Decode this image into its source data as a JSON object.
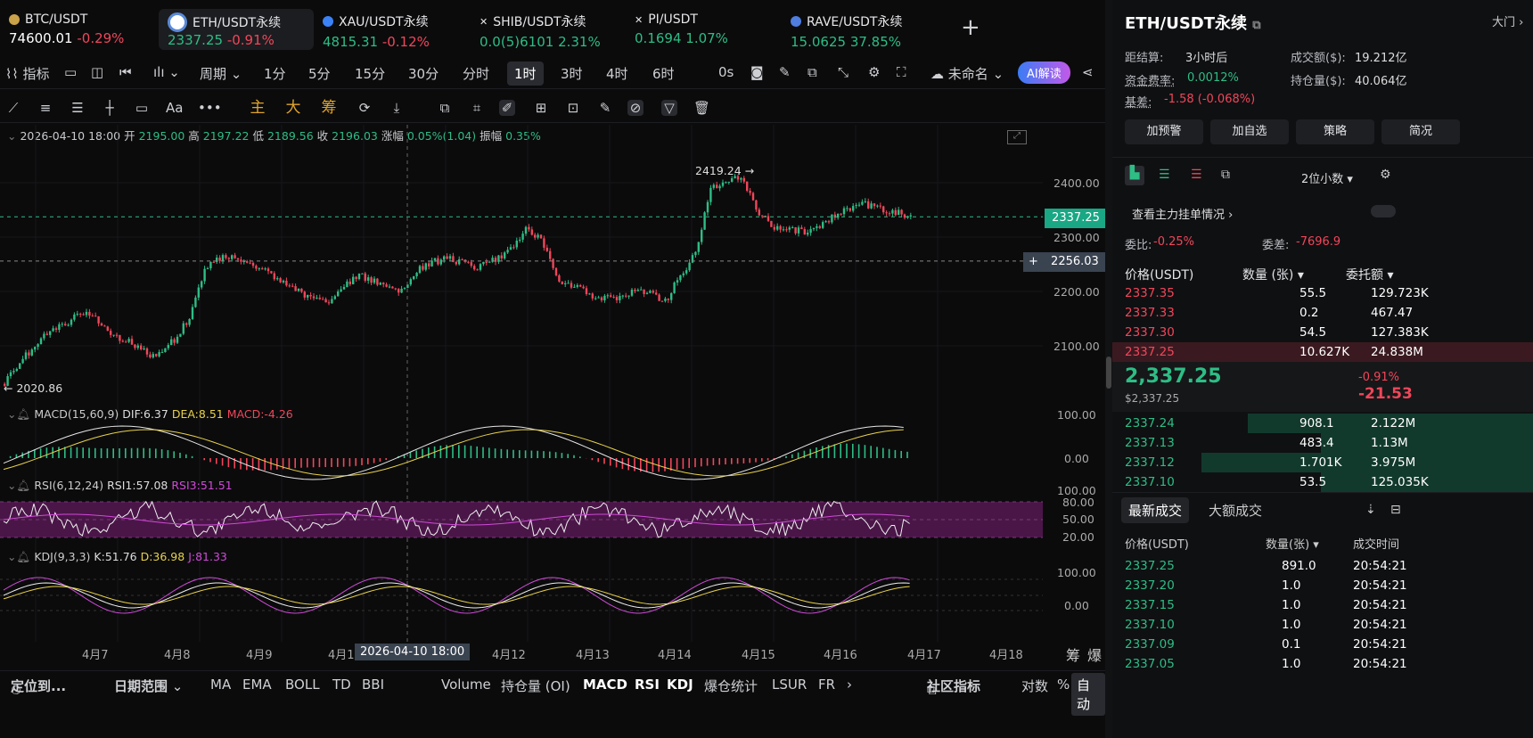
{
  "tabs": [
    {
      "name": "BTC/USDT",
      "price": "74600.01",
      "change": "-0.29%",
      "dir": "down",
      "dot": "#c9a24a"
    },
    {
      "name": "ETH/USDT永续",
      "price": "2337.25",
      "change": "-0.91%",
      "dir": "down",
      "dot": "#7fa3e8"
    },
    {
      "name": "XAU/USDT永续",
      "price": "4815.31",
      "change": "-0.12%",
      "dir": "down",
      "dot": "#3b82f6"
    },
    {
      "name": "SHIB/USDT永续",
      "price": "0.0(5)6101",
      "change": "2.31%",
      "dir": "up",
      "dot": "#ffffff"
    },
    {
      "name": "PI/USDT",
      "price": "0.1694",
      "change": "1.07%",
      "dir": "up",
      "dot": "#ffffff"
    },
    {
      "name": "RAVE/USDT永续",
      "price": "15.0625",
      "change": "37.85%",
      "dir": "up",
      "dot": "#4f7de0"
    }
  ],
  "toolbar1": {
    "indicator": "指标",
    "period": "周期",
    "intervals": [
      "1分",
      "5分",
      "15分",
      "30分",
      "分时",
      "1时",
      "3时",
      "4时",
      "6时"
    ],
    "active": "1时",
    "countdown": "0s",
    "layout": "未命名",
    "ai": "AI解读"
  },
  "toolbar2": {
    "zhu": "主",
    "da": "大",
    "chou": "筹"
  },
  "ohlc": {
    "date": "2026-04-10 18:00",
    "open_l": "开",
    "open": "2195.00",
    "high_l": "高",
    "high": "2197.22",
    "low_l": "低",
    "low": "2189.56",
    "close_l": "收",
    "close": "2196.03",
    "chg_l": "涨幅",
    "chg": "0.05%(1.04)",
    "amp_l": "振幅",
    "amp": "0.35%"
  },
  "chart_data": {
    "type": "candlestick",
    "price_ticks": [
      "2400.00",
      "2300.00",
      "2200.00",
      "2100.00"
    ],
    "last_price": "2337.25",
    "crosshair_price": "2256.03",
    "high_marker": "2419.24",
    "low_marker": "2020.86",
    "x_ticks": [
      "4月7",
      "4月8",
      "4月9",
      "4月1",
      "4月12",
      "4月13",
      "4月14",
      "4月15",
      "4月16",
      "4月17",
      "4月18"
    ],
    "crosshair_time": "2026-04-10 18:00",
    "close_path": [
      2030,
      2070,
      2100,
      2130,
      2140,
      2160,
      2150,
      2120,
      2110,
      2090,
      2080,
      2110,
      2150,
      2240,
      2260,
      2265,
      2250,
      2240,
      2220,
      2200,
      2190,
      2180,
      2210,
      2230,
      2220,
      2210,
      2200,
      2240,
      2255,
      2260,
      2250,
      2245,
      2260,
      2280,
      2320,
      2290,
      2220,
      2210,
      2195,
      2185,
      2190,
      2200,
      2195,
      2180,
      2230,
      2270,
      2390,
      2400,
      2410,
      2350,
      2320,
      2315,
      2310,
      2320,
      2340,
      2355,
      2360,
      2350,
      2345,
      2337
    ]
  },
  "macd": {
    "label": "MACD(15,60,9)",
    "dif": "DIF:6.37",
    "dea": "DEA:8.51",
    "macd": "MACD:-4.26",
    "ticks": [
      "100.00",
      "0.00"
    ]
  },
  "rsi": {
    "label": "RSI(6,12,24)",
    "rsi1": "RSI1:57.08",
    "rsi3": "RSI3:51.51",
    "ticks": [
      "100.00",
      "80.00",
      "50.00",
      "20.00"
    ]
  },
  "kdj": {
    "label": "KDJ(9,3,3)",
    "k": "K:51.76",
    "d": "D:36.98",
    "j": "J:81.33",
    "ticks": [
      "100.00",
      "0.00"
    ]
  },
  "footer": {
    "locate": "定位到...",
    "range": "日期范围",
    "inds": [
      "MA",
      "EMA",
      "BOLL",
      "TD",
      "BBI"
    ],
    "subs": [
      "Volume",
      "持仓量 (OI)",
      "MACD",
      "RSI",
      "KDJ",
      "爆仓统计",
      "LSUR",
      "FR"
    ],
    "community": "社区指标",
    "log": "对数",
    "pct": "%",
    "auto": "自动",
    "chou": "筹",
    "bao": "爆"
  },
  "right": {
    "title": "ETH/USDT永续",
    "gate": "大门",
    "settle_l": "距结算:",
    "settle": "3小时后",
    "vol_l": "成交额($):",
    "vol": "19.212亿",
    "rate_l": "资金费率:",
    "rate": "0.0012%",
    "oi_l": "持仓量($):",
    "oi": "40.064亿",
    "basis_l": "基差:",
    "basis": "-1.58 (-0.068%)",
    "buttons": [
      "加预警",
      "加自选",
      "策略",
      "简况"
    ],
    "decimals": "2位小数",
    "depth_link": "查看主力挂单情况",
    "ratio_l": "委比:",
    "ratio": "-0.25%",
    "diff_l": "委差:",
    "diff": "-7696.9",
    "cols": [
      "价格(USDT)",
      "数量 (张)",
      "委托额"
    ],
    "asks": [
      [
        "2337.35",
        "55.5",
        "129.723K"
      ],
      [
        "2337.33",
        "0.2",
        "467.47"
      ],
      [
        "2337.30",
        "54.5",
        "127.383K"
      ],
      [
        "2337.25",
        "10.627K",
        "24.838M"
      ]
    ],
    "mid_price": "2,337.25",
    "mid_usd": "$2,337.25",
    "mid_pct": "-0.91%",
    "mid_abs": "-21.53",
    "bids": [
      [
        "2337.24",
        "908.1",
        "2.122M"
      ],
      [
        "2337.13",
        "483.4",
        "1.13M"
      ],
      [
        "2337.12",
        "1.701K",
        "3.975M"
      ],
      [
        "2337.10",
        "53.5",
        "125.035K"
      ]
    ],
    "trade_tabs": [
      "最新成交",
      "大额成交"
    ],
    "trade_cols": [
      "价格(USDT)",
      "数量(张)",
      "成交时间"
    ],
    "trades": [
      [
        "2337.25",
        "891.0",
        "20:54:21"
      ],
      [
        "2337.20",
        "1.0",
        "20:54:21"
      ],
      [
        "2337.15",
        "1.0",
        "20:54:21"
      ],
      [
        "2337.10",
        "1.0",
        "20:54:21"
      ],
      [
        "2337.09",
        "0.1",
        "20:54:21"
      ],
      [
        "2337.05",
        "1.0",
        "20:54:21"
      ]
    ]
  }
}
